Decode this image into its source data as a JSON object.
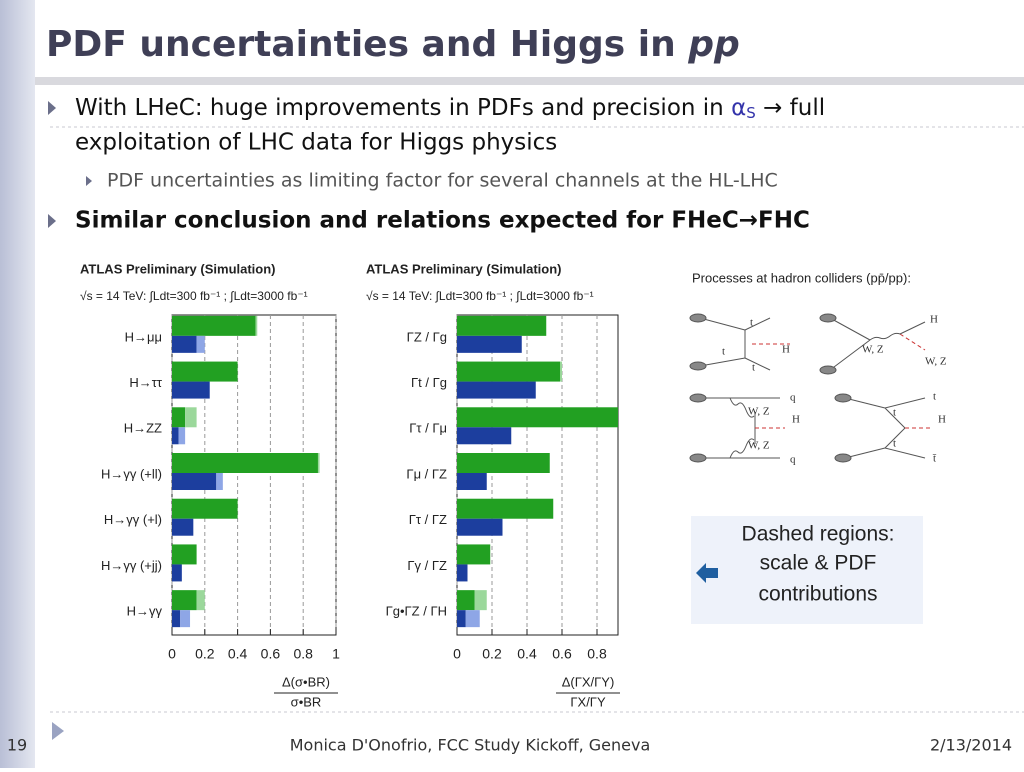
{
  "header": {
    "title": "PDF uncertainties and Higgs in ",
    "title_italic": "pp"
  },
  "bullets": [
    {
      "text": "With LHeC: huge improvements in PDFs and precision in ",
      "symbol": "α",
      "sub": "S",
      "arrow": " → full",
      "line2": "exploitation of LHC data for Higgs physics"
    },
    {
      "text": "PDF uncertainties as limiting factor for several channels at the HL-LHC"
    },
    {
      "text": "Similar conclusion and relations expected for FHeC→FHC"
    }
  ],
  "figures": [
    {
      "type": "bar",
      "orientation": "horizontal",
      "header": "ATLAS Preliminary (Simulation)",
      "energy_label": "√s = 14 TeV: ∫Ldt=300 fb⁻¹ ; ∫Ldt=3000 fb⁻¹",
      "categories": [
        "H→μμ",
        "H→ττ",
        "H→ZZ",
        "H→γγ (+ll)",
        "H→γγ (+l)",
        "H→γγ (+jj)",
        "H→γγ"
      ],
      "series": [
        {
          "color": "#22a022",
          "dashed_color": "#9bd89b",
          "values": [
            0.51,
            0.4,
            0.08,
            0.89,
            0.4,
            0.15,
            0.15
          ],
          "dashed": [
            0.01,
            0,
            0.07,
            0.01,
            0,
            0,
            0.05
          ]
        },
        {
          "color": "#1c3e9e",
          "dashed_color": "#8ea6e6",
          "values": [
            0.15,
            0.23,
            0.04,
            0.27,
            0.13,
            0.06,
            0.05
          ],
          "dashed": [
            0.05,
            0,
            0.04,
            0.04,
            0,
            0,
            0.06
          ]
        }
      ],
      "xlim": [
        0,
        1
      ],
      "xticks": [
        0,
        0.2,
        0.4,
        0.6,
        0.8,
        1
      ],
      "grid": true,
      "xlabel_num": "Δ(σ•BR)",
      "xlabel_den": "σ•BR"
    },
    {
      "type": "bar",
      "orientation": "horizontal",
      "header": "ATLAS Preliminary (Simulation)",
      "energy_label": "√s = 14 TeV: ∫Ldt=300 fb⁻¹ ; ∫Ldt=3000 fb⁻¹",
      "categories": [
        "ΓZ / Γg",
        "Γt / Γg",
        "Γτ / Γμ",
        "Γμ / ΓZ",
        "Γτ / ΓZ",
        "Γγ / ΓZ",
        "Γg•ΓZ / ΓH"
      ],
      "series": [
        {
          "color": "#22a022",
          "dashed_color": "#9bd89b",
          "values": [
            0.51,
            0.59,
            0.92,
            0.53,
            0.55,
            0.19,
            0.1
          ],
          "dashed": [
            0,
            0.01,
            0,
            0,
            0,
            0,
            0.07
          ]
        },
        {
          "color": "#1c3e9e",
          "dashed_color": "#8ea6e6",
          "values": [
            0.37,
            0.45,
            0.31,
            0.17,
            0.26,
            0.06,
            0.05
          ],
          "dashed": [
            0,
            0,
            0,
            0,
            0,
            0,
            0.08
          ]
        }
      ],
      "xlim": [
        0,
        0.92
      ],
      "xticks": [
        0,
        0.2,
        0.4,
        0.6,
        0.8
      ],
      "grid": true,
      "xlabel_num": "Δ(ΓX/ΓY)",
      "xlabel_den": "ΓX/ΓY"
    }
  ],
  "processes": {
    "title": "Processes at hadron colliders (pp̄/pp):",
    "diagrams": [
      {
        "labels": [
          "t",
          "t",
          "t",
          "H"
        ]
      },
      {
        "labels": [
          "H",
          "W, Z",
          "W, Z"
        ]
      },
      {
        "labels": [
          "q",
          "W, Z",
          "H",
          "W, Z",
          "q"
        ]
      },
      {
        "labels": [
          "t",
          "t",
          "H",
          "t",
          "t̄"
        ]
      }
    ]
  },
  "callout": {
    "lines": [
      "Dashed regions:",
      "scale & PDF",
      "contributions"
    ]
  },
  "footer": {
    "page": "19",
    "center": "Monica D'Onofrio, FCC Study Kickoff, Geneva",
    "date": "2/13/2014"
  }
}
